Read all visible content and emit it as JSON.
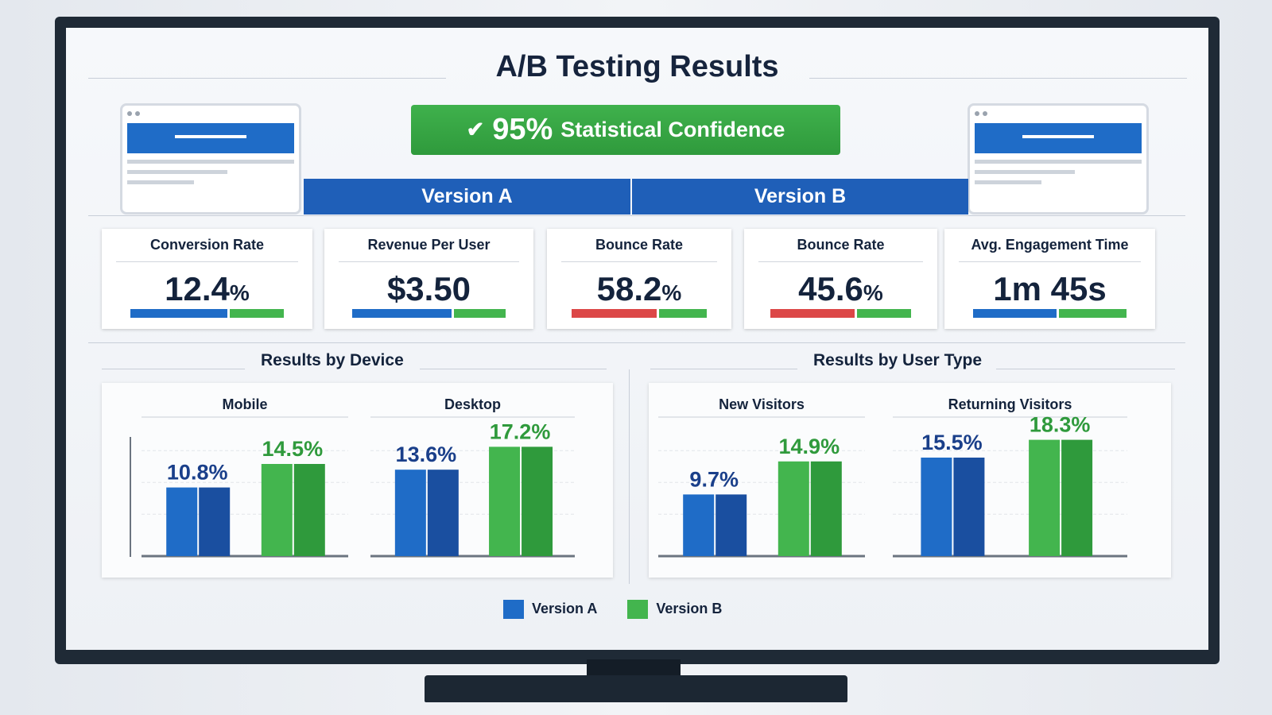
{
  "header": {
    "title": "A/B Testing Results",
    "confidence_value": "95%",
    "confidence_label": "Statistical Confidence",
    "check_icon": "check-icon"
  },
  "versions": {
    "a": "Version A",
    "b": "Version B"
  },
  "colors": {
    "version_a": "#1f6cc7",
    "version_a_dark": "#1a4fa0",
    "version_b": "#43b54e",
    "version_b_dark": "#2f9a3c",
    "negative": "#dc4747",
    "header_bar": "#1f5fb8"
  },
  "metrics": [
    {
      "label": "Conversion Rate",
      "value": "12.4",
      "unit": "%",
      "bar_colors": [
        "#1f6cc7",
        "#43b54e"
      ],
      "split": 0.64
    },
    {
      "label": "Revenue Per User",
      "value": "$3.50",
      "unit": "",
      "bar_colors": [
        "#1f6cc7",
        "#43b54e"
      ],
      "split": 0.66
    },
    {
      "label": "Bounce Rate",
      "value": "58.2",
      "unit": "%",
      "bar_colors": [
        "#dc4747",
        "#43b54e"
      ],
      "split": 0.64
    },
    {
      "label": "Bounce Rate",
      "value": "45.6",
      "unit": "%",
      "bar_colors": [
        "#dc4747",
        "#43b54e"
      ],
      "split": 0.61
    },
    {
      "label": "Avg. Engagement Time",
      "value": "1m 45s",
      "unit": "",
      "bar_colors": [
        "#1f6cc7",
        "#43b54e"
      ],
      "split": 0.55
    }
  ],
  "sections": {
    "device": "Results by Device",
    "user_type": "Results by User Type"
  },
  "chart_data": [
    {
      "type": "bar",
      "title": "Mobile",
      "categories": [
        "Version A",
        "Version B"
      ],
      "values": [
        10.8,
        14.5
      ],
      "labels": [
        "10.8%",
        "14.5%"
      ],
      "ylim": [
        0,
        20
      ]
    },
    {
      "type": "bar",
      "title": "Desktop",
      "categories": [
        "Version A",
        "Version B"
      ],
      "values": [
        13.6,
        17.2
      ],
      "labels": [
        "13.6%",
        "17.2%"
      ],
      "ylim": [
        0,
        20
      ]
    },
    {
      "type": "bar",
      "title": "New Visitors",
      "categories": [
        "Version A",
        "Version B"
      ],
      "values": [
        9.7,
        14.9
      ],
      "labels": [
        "9.7%",
        "14.9%"
      ],
      "ylim": [
        0,
        20
      ]
    },
    {
      "type": "bar",
      "title": "Returning Visitors",
      "categories": [
        "Version A",
        "Version B"
      ],
      "values": [
        15.5,
        18.3
      ],
      "labels": [
        "15.5%",
        "18.3%"
      ],
      "ylim": [
        0,
        20
      ]
    }
  ],
  "legend": [
    {
      "label": "Version A",
      "color": "#1f6cc7"
    },
    {
      "label": "Version B",
      "color": "#43b54e"
    }
  ]
}
